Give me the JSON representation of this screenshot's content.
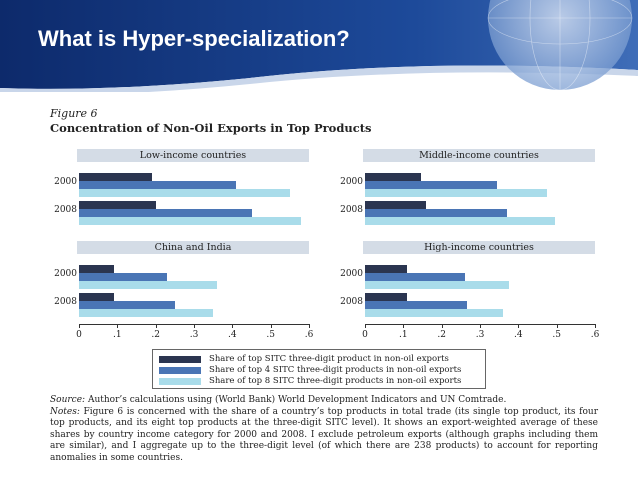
{
  "slide": {
    "title": "What is Hyper-specialization?"
  },
  "figure": {
    "label": "Figure 6",
    "title": "Concentration of Non-Oil Exports in Top Products"
  },
  "colors": {
    "series1": "#2b3550",
    "series2": "#4a75b5",
    "series3": "#a9dcea"
  },
  "chart_data": {
    "type": "bar",
    "orientation": "horizontal",
    "xlim": [
      0,
      0.6
    ],
    "x_ticks": [
      "0",
      ".1",
      ".2",
      ".3",
      ".4",
      ".5",
      ".6"
    ],
    "categories": [
      "2000",
      "2008"
    ],
    "legend": [
      "Share of top SITC three-digit product in non-oil exports",
      "Share of top 4 SITC three-digit products in non-oil exports",
      "Share of top 8 SITC three-digit products in non-oil exports"
    ],
    "panels": [
      {
        "title": "Low-income countries",
        "values": [
          [
            0.19,
            0.41,
            0.55
          ],
          [
            0.2,
            0.45,
            0.58
          ]
        ]
      },
      {
        "title": "Middle-income countries",
        "values": [
          [
            0.145,
            0.345,
            0.475
          ],
          [
            0.16,
            0.37,
            0.495
          ]
        ]
      },
      {
        "title": "China and India",
        "values": [
          [
            0.09,
            0.23,
            0.36
          ],
          [
            0.09,
            0.25,
            0.35
          ]
        ]
      },
      {
        "title": "High-income countries",
        "values": [
          [
            0.11,
            0.26,
            0.375
          ],
          [
            0.11,
            0.265,
            0.36
          ]
        ]
      }
    ]
  },
  "notes": {
    "source_label": "Source:",
    "source_text": " Author’s calculations using (World Bank) World Development Indicators and UN Comtrade.",
    "notes_label": "Notes:",
    "notes_text": " Figure 6 is concerned with the share of a country’s top products in total trade (its single top product, its four top products, and its eight top products at the three-digit SITC level). It shows an export-weighted average of these shares by country income category for 2000 and 2008. I exclude petroleum exports (although graphs including them are similar), and I aggregate up to the three-digit level (of which there are 238 products) to account for reporting anomalies in some countries."
  }
}
